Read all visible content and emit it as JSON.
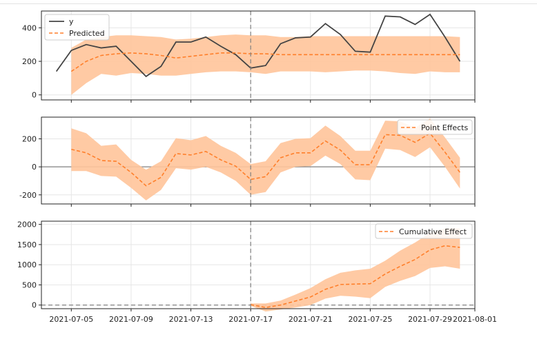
{
  "chart_data": [
    {
      "type": "line",
      "panel": "observed-vs-predicted",
      "x": [
        "2021-07-04",
        "2021-07-05",
        "2021-07-06",
        "2021-07-07",
        "2021-07-08",
        "2021-07-09",
        "2021-07-10",
        "2021-07-11",
        "2021-07-12",
        "2021-07-13",
        "2021-07-14",
        "2021-07-15",
        "2021-07-16",
        "2021-07-17",
        "2021-07-18",
        "2021-07-19",
        "2021-07-20",
        "2021-07-21",
        "2021-07-22",
        "2021-07-23",
        "2021-07-24",
        "2021-07-25",
        "2021-07-26",
        "2021-07-27",
        "2021-07-28",
        "2021-07-29",
        "2021-07-30",
        "2021-07-31"
      ],
      "series": [
        {
          "name": "y",
          "color": "#444444",
          "style": "solid",
          "values": [
            140,
            265,
            300,
            280,
            290,
            200,
            110,
            170,
            315,
            315,
            345,
            290,
            240,
            160,
            175,
            305,
            340,
            345,
            425,
            360,
            260,
            255,
            470,
            465,
            420,
            480,
            345,
            200
          ]
        },
        {
          "name": "Predicted",
          "color": "#ff7f2a",
          "style": "dashed",
          "values": [
            null,
            140,
            200,
            235,
            245,
            250,
            245,
            235,
            220,
            230,
            240,
            250,
            250,
            245,
            245,
            240,
            240,
            240,
            240,
            240,
            240,
            240,
            240,
            240,
            240,
            240,
            240,
            240
          ],
          "band_lower": [
            null,
            0,
            70,
            125,
            115,
            130,
            125,
            115,
            115,
            125,
            135,
            140,
            140,
            135,
            125,
            140,
            140,
            140,
            135,
            140,
            145,
            145,
            140,
            130,
            125,
            140,
            135,
            135
          ],
          "band_upper": [
            null,
            280,
            330,
            345,
            355,
            355,
            350,
            345,
            330,
            335,
            345,
            355,
            360,
            355,
            355,
            345,
            345,
            350,
            350,
            350,
            350,
            350,
            350,
            350,
            350,
            350,
            350,
            345
          ]
        }
      ],
      "xlim": [
        "2021-07-03",
        "2021-08-01"
      ],
      "ylim": [
        -30,
        500
      ],
      "yticks": [
        0,
        200,
        400
      ],
      "grid": true,
      "legend_position": "top-left"
    },
    {
      "type": "line",
      "panel": "point-effects",
      "x": [
        "2021-07-05",
        "2021-07-06",
        "2021-07-07",
        "2021-07-08",
        "2021-07-09",
        "2021-07-10",
        "2021-07-11",
        "2021-07-12",
        "2021-07-13",
        "2021-07-14",
        "2021-07-15",
        "2021-07-16",
        "2021-07-17",
        "2021-07-18",
        "2021-07-19",
        "2021-07-20",
        "2021-07-21",
        "2021-07-22",
        "2021-07-23",
        "2021-07-24",
        "2021-07-25",
        "2021-07-26",
        "2021-07-27",
        "2021-07-28",
        "2021-07-29",
        "2021-07-30",
        "2021-07-31"
      ],
      "series": [
        {
          "name": "Point Effects",
          "color": "#ff7f2a",
          "style": "dashed",
          "values": [
            125,
            100,
            45,
            40,
            -40,
            -135,
            -75,
            95,
            85,
            110,
            50,
            5,
            -90,
            -70,
            65,
            100,
            100,
            185,
            120,
            15,
            15,
            230,
            225,
            175,
            240,
            105,
            -40
          ],
          "band_lower": [
            -30,
            -30,
            -65,
            -70,
            -150,
            -240,
            -165,
            -10,
            -20,
            0,
            -40,
            -100,
            -200,
            -180,
            -40,
            0,
            5,
            80,
            20,
            -90,
            -95,
            130,
            120,
            70,
            140,
            0,
            -155
          ],
          "band_upper": [
            275,
            240,
            150,
            160,
            50,
            -20,
            40,
            205,
            190,
            220,
            150,
            100,
            20,
            40,
            170,
            200,
            205,
            295,
            220,
            115,
            115,
            330,
            325,
            280,
            345,
            210,
            65
          ]
        }
      ],
      "xlim": [
        "2021-07-03",
        "2021-08-01"
      ],
      "ylim": [
        -265,
        355
      ],
      "yticks": [
        -200,
        0,
        200
      ],
      "grid": true,
      "legend_position": "top-right"
    },
    {
      "type": "line",
      "panel": "cumulative-effect",
      "x": [
        "2021-07-17",
        "2021-07-18",
        "2021-07-19",
        "2021-07-20",
        "2021-07-21",
        "2021-07-22",
        "2021-07-23",
        "2021-07-24",
        "2021-07-25",
        "2021-07-26",
        "2021-07-27",
        "2021-07-28",
        "2021-07-29",
        "2021-07-30",
        "2021-07-31"
      ],
      "series": [
        {
          "name": "Cumulative Effect",
          "color": "#ff7f2a",
          "style": "dashed",
          "values": [
            10,
            -60,
            0,
            100,
            200,
            390,
            510,
            520,
            530,
            770,
            960,
            1130,
            1370,
            1470,
            1430
          ],
          "band_lower": [
            -20,
            -160,
            -110,
            -60,
            0,
            160,
            230,
            210,
            170,
            450,
            600,
            720,
            920,
            960,
            900
          ],
          "band_upper": [
            40,
            40,
            110,
            260,
            420,
            640,
            800,
            860,
            900,
            1100,
            1350,
            1550,
            1790,
            1900,
            1900
          ]
        }
      ],
      "xlim": [
        "2021-07-03",
        "2021-08-01"
      ],
      "ylim": [
        -90,
        2080
      ],
      "yticks": [
        0,
        500,
        1000,
        1500,
        2000
      ],
      "xticks": [
        "2021-07-05",
        "2021-07-09",
        "2021-07-13",
        "2021-07-17",
        "2021-07-21",
        "2021-07-25",
        "2021-07-29",
        "2021-08-01"
      ],
      "grid": true,
      "legend_position": "top-right"
    }
  ],
  "intervention_date": "2021-07-17",
  "colors": {
    "band": "#ffc49a",
    "dashed_line": "#ff7f2a",
    "observed": "#444444",
    "grid": "#e6e6e6",
    "zero_line": "#808080"
  }
}
